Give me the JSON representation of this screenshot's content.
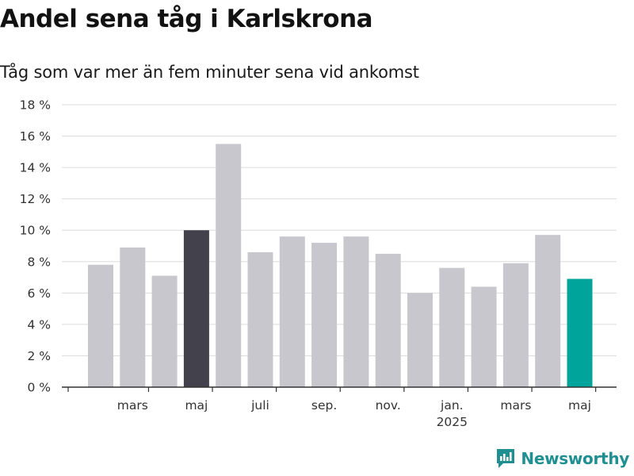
{
  "title": "Andel sena tåg i Karlskrona",
  "subtitle": "Tåg som var mer än fem minuter sena vid ankomst",
  "brand": "Newsworthy",
  "colors": {
    "bar_default": "#c8c7ce",
    "bar_highlight_dark": "#42414c",
    "bar_highlight_latest": "#00a49b",
    "grid": "#dcdcdc",
    "axis": "#333333",
    "brand": "#1f8f91"
  },
  "chart_data": {
    "type": "bar",
    "title": "",
    "xlabel": "",
    "ylabel": "",
    "ylim": [
      0,
      18
    ],
    "y_ticks": [
      "0 %",
      "2 %",
      "4 %",
      "6 %",
      "8 %",
      "10 %",
      "12 %",
      "14 %",
      "16 %",
      "18 %"
    ],
    "grid": true,
    "x_tick_labels": [
      {
        "label": "mars",
        "bar_index": 1
      },
      {
        "label": "maj",
        "bar_index": 3
      },
      {
        "label": "juli",
        "bar_index": 5
      },
      {
        "label": "sep.",
        "bar_index": 7
      },
      {
        "label": "nov.",
        "bar_index": 9
      },
      {
        "label": "jan.",
        "sub": "2025",
        "bar_index": 11
      },
      {
        "label": "mars",
        "bar_index": 13
      },
      {
        "label": "maj",
        "bar_index": 15
      }
    ],
    "values": [
      7.8,
      8.9,
      7.1,
      10.0,
      15.5,
      8.6,
      9.6,
      9.2,
      9.6,
      8.5,
      6.0,
      7.6,
      6.4,
      7.9,
      9.7,
      6.9
    ],
    "highlight": {
      "3": "bar_highlight_dark",
      "15": "bar_highlight_latest"
    }
  }
}
